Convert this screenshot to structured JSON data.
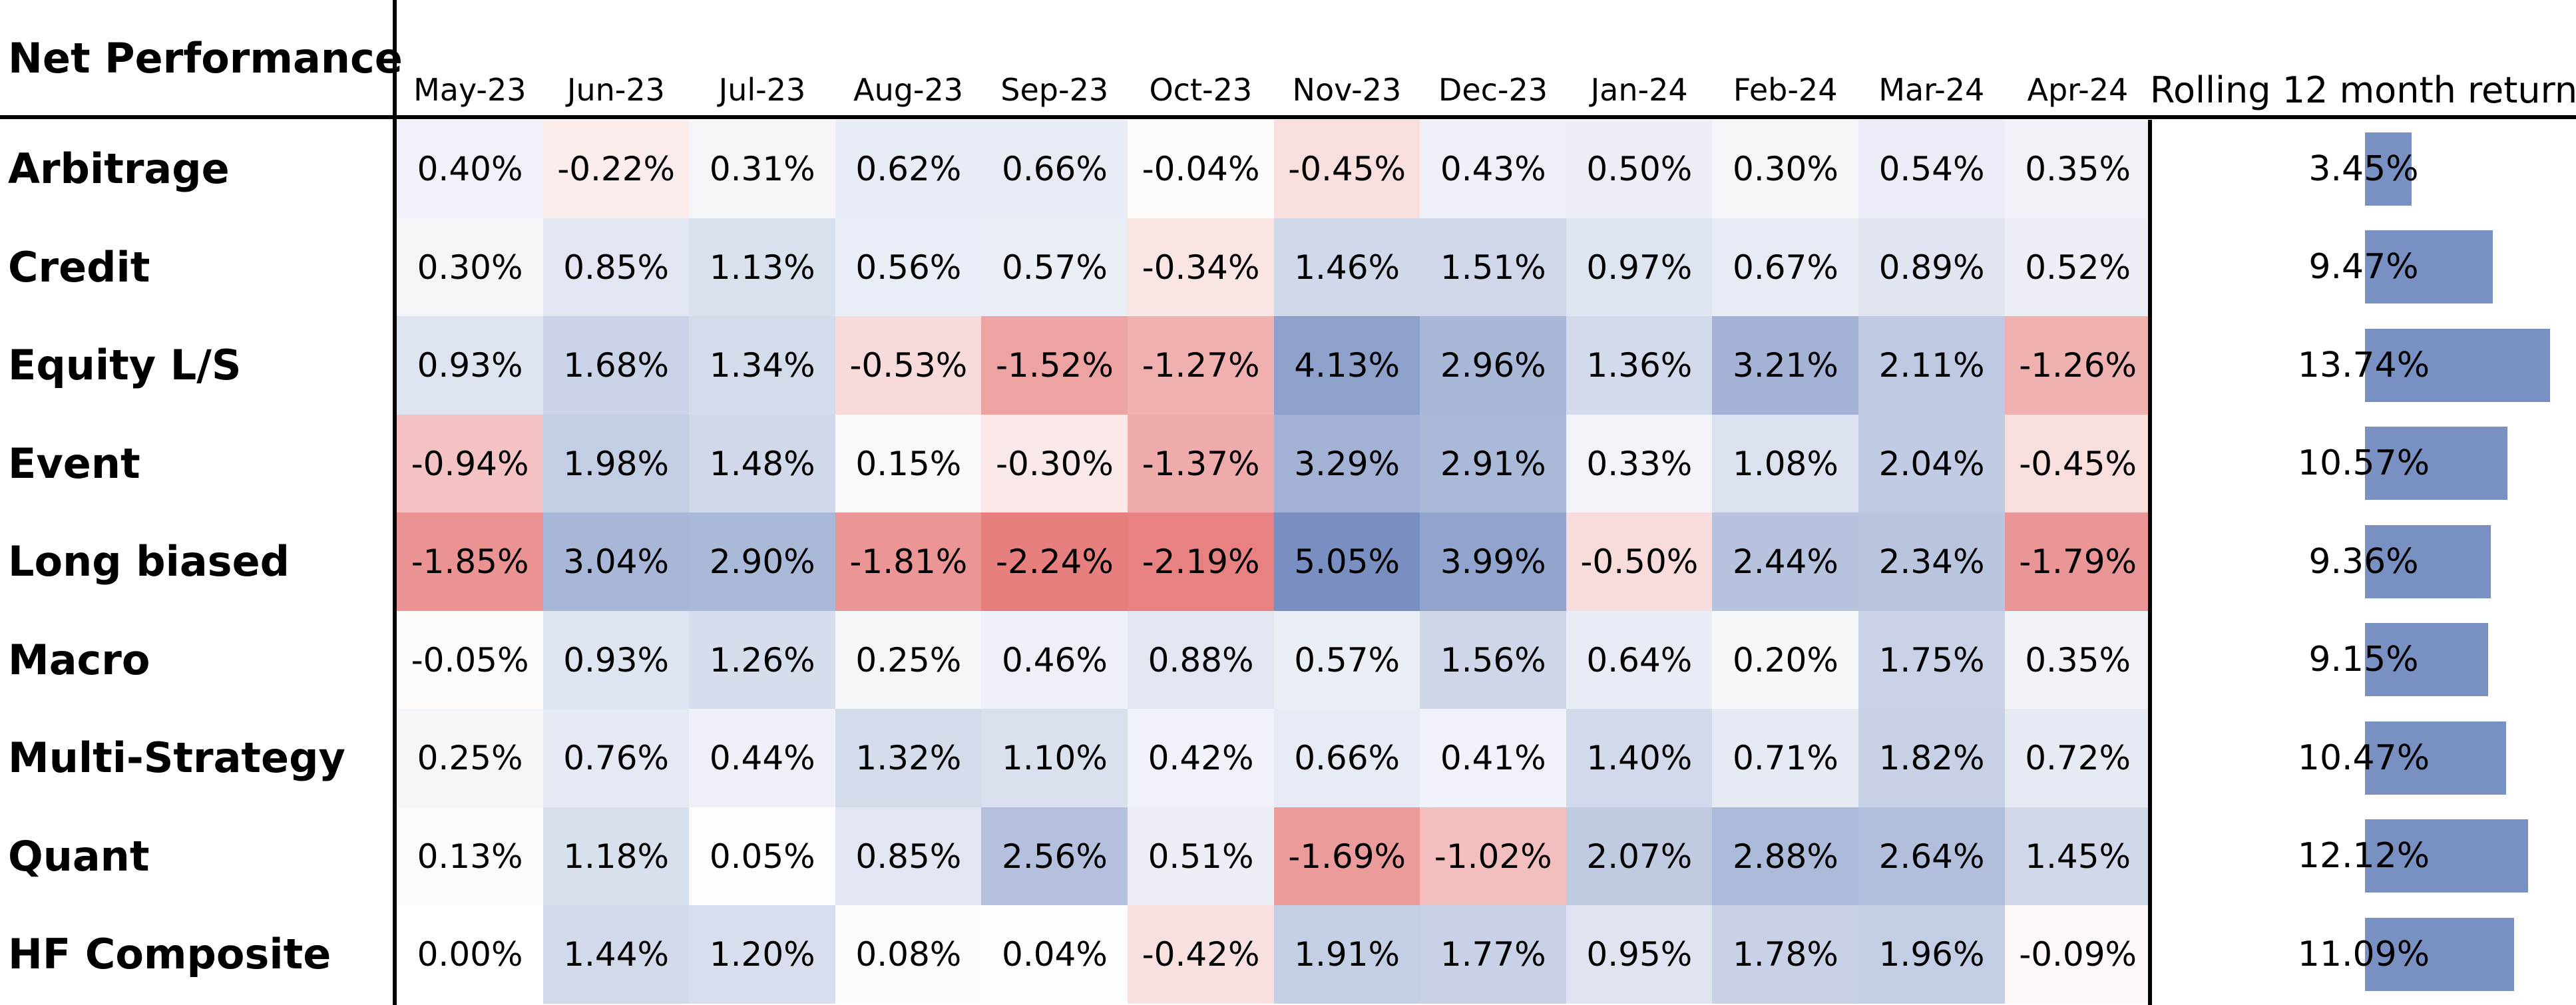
{
  "chart_data": {
    "type": "heatmap",
    "title": "Net Performance",
    "columns": [
      "May-23",
      "Jun-23",
      "Jul-23",
      "Aug-23",
      "Sep-23",
      "Oct-23",
      "Nov-23",
      "Dec-23",
      "Jan-24",
      "Feb-24",
      "Mar-24",
      "Apr-24"
    ],
    "rolling_header": "Rolling 12 month return",
    "rows": [
      {
        "label": "Arbitrage",
        "values": [
          "0.40%",
          "-0.22%",
          "0.31%",
          "0.62%",
          "0.66%",
          "-0.04%",
          "-0.45%",
          "0.43%",
          "0.50%",
          "0.30%",
          "0.54%",
          "0.35%"
        ],
        "rolling": "3.45%",
        "rolling_value": 3.45
      },
      {
        "label": "Credit",
        "values": [
          "0.30%",
          "0.85%",
          "1.13%",
          "0.56%",
          "0.57%",
          "-0.34%",
          "1.46%",
          "1.51%",
          "0.97%",
          "0.67%",
          "0.89%",
          "0.52%"
        ],
        "rolling": "9.47%",
        "rolling_value": 9.47
      },
      {
        "label": "Equity L/S",
        "values": [
          "0.93%",
          "1.68%",
          "1.34%",
          "-0.53%",
          "-1.52%",
          "-1.27%",
          "4.13%",
          "2.96%",
          "1.36%",
          "3.21%",
          "2.11%",
          "-1.26%"
        ],
        "rolling": "13.74%",
        "rolling_value": 13.74
      },
      {
        "label": "Event",
        "values": [
          "-0.94%",
          "1.98%",
          "1.48%",
          "0.15%",
          "-0.30%",
          "-1.37%",
          "3.29%",
          "2.91%",
          "0.33%",
          "1.08%",
          "2.04%",
          "-0.45%"
        ],
        "rolling": "10.57%",
        "rolling_value": 10.57
      },
      {
        "label": "Long biased",
        "values": [
          "-1.85%",
          "3.04%",
          "2.90%",
          "-1.81%",
          "-2.24%",
          "-2.19%",
          "5.05%",
          "3.99%",
          "-0.50%",
          "2.44%",
          "2.34%",
          "-1.79%"
        ],
        "rolling": "9.36%",
        "rolling_value": 9.36
      },
      {
        "label": "Macro",
        "values": [
          "-0.05%",
          "0.93%",
          "1.26%",
          "0.25%",
          "0.46%",
          "0.88%",
          "0.57%",
          "1.56%",
          "0.64%",
          "0.20%",
          "1.75%",
          "0.35%"
        ],
        "rolling": "9.15%",
        "rolling_value": 9.15
      },
      {
        "label": "Multi-Strategy",
        "values": [
          "0.25%",
          "0.76%",
          "0.44%",
          "1.32%",
          "1.10%",
          "0.42%",
          "0.66%",
          "0.41%",
          "1.40%",
          "0.71%",
          "1.82%",
          "0.72%"
        ],
        "rolling": "10.47%",
        "rolling_value": 10.47
      },
      {
        "label": "Quant",
        "values": [
          "0.13%",
          "1.18%",
          "0.05%",
          "0.85%",
          "2.56%",
          "0.51%",
          "-1.69%",
          "-1.02%",
          "2.07%",
          "2.88%",
          "2.64%",
          "1.45%"
        ],
        "rolling": "12.12%",
        "rolling_value": 12.12
      },
      {
        "label": "HF Composite",
        "values": [
          "0.00%",
          "1.44%",
          "1.20%",
          "0.08%",
          "0.04%",
          "-0.42%",
          "1.91%",
          "1.77%",
          "0.95%",
          "1.78%",
          "1.96%",
          "-0.09%"
        ],
        "rolling": "11.09%",
        "rolling_value": 11.09
      }
    ],
    "color_scale": {
      "negative": "#e57373",
      "neutral": "#ffffff",
      "positive": "#6f87bd",
      "range": [
        -2.5,
        5.5
      ]
    },
    "bar_color": "#7990c2"
  }
}
